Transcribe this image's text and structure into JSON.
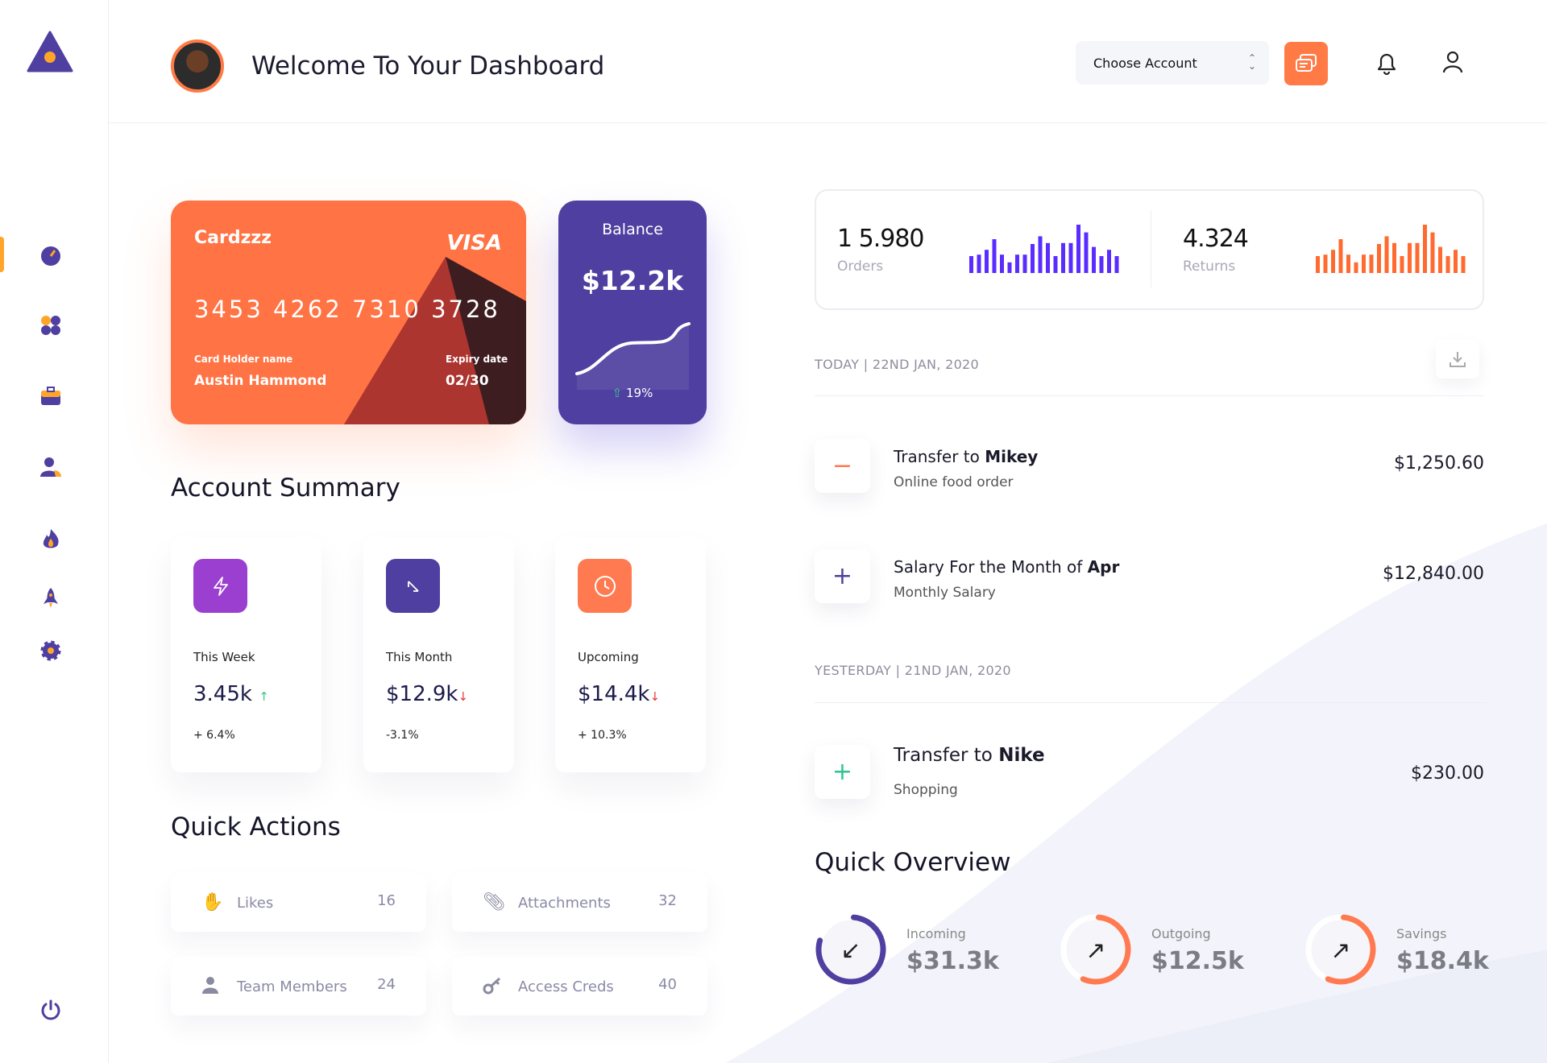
{
  "header": {
    "title": "Welcome To Your Dashboard",
    "account_select": "Choose Account"
  },
  "sidebar": {
    "items": [
      "dashboard",
      "apps",
      "briefcase",
      "users",
      "fire",
      "rocket",
      "settings"
    ],
    "active": "dashboard",
    "logout": "power"
  },
  "card": {
    "name": "Cardzzz",
    "brand": "VISA",
    "number": "3453 4262 7310 3728",
    "holder_label": "Card Holder name",
    "holder": "Austin Hammond",
    "expiry_label": "Expiry date",
    "expiry": "02/30"
  },
  "balance": {
    "label": "Balance",
    "value": "$12.2k",
    "change": "19%"
  },
  "account_summary": {
    "title": "Account Summary",
    "items": [
      {
        "label": "This Week",
        "value": "3.45k",
        "trend": "up",
        "change": "+ 6.4%",
        "color": "#9b3fd0"
      },
      {
        "label": "This Month",
        "value": "$12.9k",
        "trend": "down",
        "change": "-3.1%",
        "color": "#4f3fa0"
      },
      {
        "label": "Upcoming",
        "value": "$14.4k",
        "trend": "down",
        "change": "+ 10.3%",
        "color": "#ff7a50"
      }
    ]
  },
  "quick_actions": {
    "title": "Quick Actions",
    "items": [
      {
        "label": "Likes",
        "count": "16",
        "icon": "hand-icon"
      },
      {
        "label": "Attachments",
        "count": "32",
        "icon": "paperclip-icon"
      },
      {
        "label": "Team Members",
        "count": "24",
        "icon": "user-icon"
      },
      {
        "label": "Access Creds",
        "count": "40",
        "icon": "key-icon"
      }
    ]
  },
  "stats": {
    "orders": {
      "value": "1 5.980",
      "label": "Orders",
      "color": "#5b2cff",
      "bars": [
        0.35,
        0.38,
        0.48,
        0.7,
        0.38,
        0.22,
        0.38,
        0.38,
        0.6,
        0.76,
        0.62,
        0.35,
        0.62,
        0.62,
        1,
        0.84,
        0.54,
        0.35,
        0.48,
        0.35
      ]
    },
    "returns": {
      "value": "4.324",
      "label": "Returns",
      "color": "#ff6a2f",
      "bars": [
        0.35,
        0.38,
        0.48,
        0.7,
        0.38,
        0.22,
        0.38,
        0.38,
        0.6,
        0.76,
        0.62,
        0.35,
        0.62,
        0.62,
        1,
        0.84,
        0.54,
        0.35,
        0.48,
        0.35
      ]
    }
  },
  "transactions": {
    "today_label": "TODAY | 22ND JAN, 2020",
    "yesterday_label": "YESTERDAY | 21ND JAN, 2020",
    "items": [
      {
        "prefix": "Transfer to ",
        "bold": "Mikey",
        "sub": "Online food order",
        "amount": "$1,250.60",
        "sign": "−",
        "color": "#ff7a50"
      },
      {
        "prefix": "Salary For the Month of ",
        "bold": "Apr",
        "sub": "Monthly Salary",
        "amount": "$12,840.00",
        "sign": "+",
        "color": "#4f3fa0"
      },
      {
        "prefix": "Transfer to ",
        "bold": "Nike",
        "sub": "Shopping",
        "amount": "$230.00",
        "sign": "+",
        "color": "#2ec48f"
      }
    ]
  },
  "overview": {
    "title": "Quick Overview",
    "items": [
      {
        "label": "Incoming",
        "value": "$31.3k",
        "progress": 0.78,
        "color": "#4f3fa0",
        "arrow": "↙"
      },
      {
        "label": "Outgoing",
        "value": "$12.5k",
        "progress": 0.55,
        "color": "#ff7a50",
        "arrow": "↗"
      },
      {
        "label": "Savings",
        "value": "$18.4k",
        "progress": 0.55,
        "color": "#ff7a50",
        "arrow": "↗"
      }
    ]
  }
}
